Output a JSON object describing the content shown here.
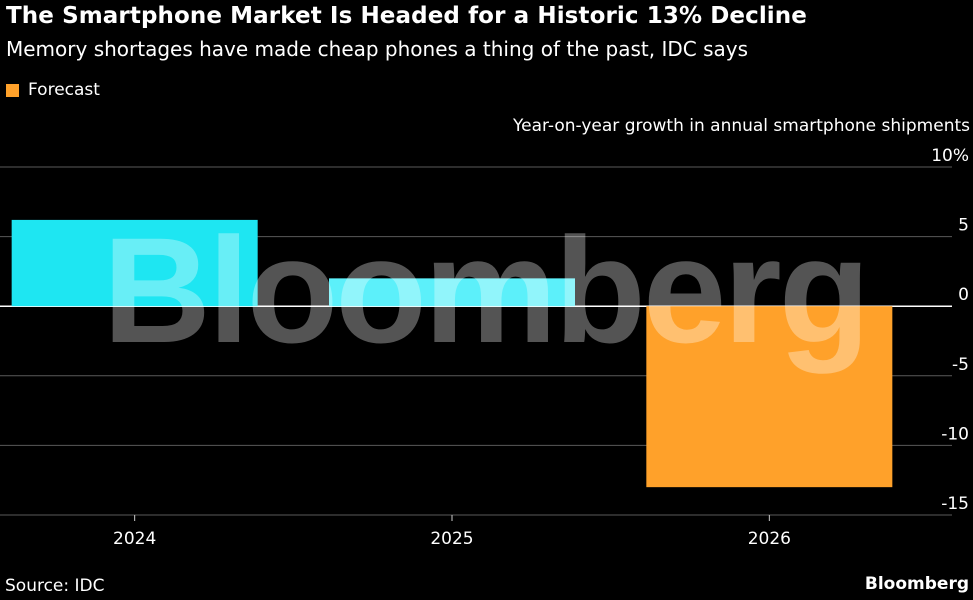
{
  "header": {
    "title": "The Smartphone Market Is Headed for a Historic 13% Decline",
    "subtitle": "Memory shortages have made cheap phones a thing of the past, IDC says"
  },
  "legend": {
    "forecast_label": "Forecast",
    "forecast_color": "#FFA12A"
  },
  "footer": {
    "source": "Source: IDC",
    "brand": "Bloomberg"
  },
  "watermark": "Bloomberg",
  "chart_data": {
    "type": "bar",
    "ylabel": "Year-on-year growth in annual smartphone shipments",
    "categories": [
      "2024",
      "2025",
      "2026"
    ],
    "values": [
      6.2,
      2.0,
      -13.0
    ],
    "forecast": [
      false,
      false,
      true
    ],
    "colors": {
      "actual_bars": [
        "#1EE6F2",
        "#5CF0FA"
      ],
      "forecast": "#FFA12A"
    },
    "ylim": [
      -15,
      10
    ],
    "yticks": [
      10,
      5,
      0,
      -5,
      -10,
      -15
    ],
    "ytick_labels": [
      "10%",
      "5",
      "0",
      "-5",
      "-10",
      "-15"
    ],
    "grid": true,
    "legend_position": "top-left"
  }
}
